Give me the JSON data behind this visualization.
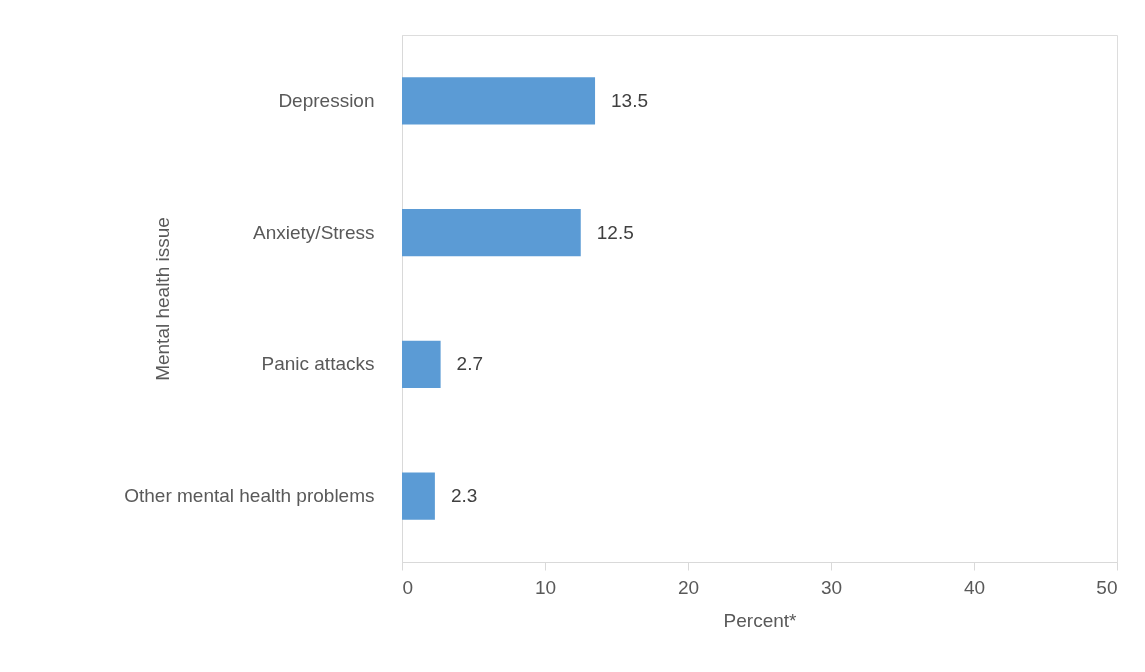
{
  "chart_data": {
    "type": "bar",
    "orientation": "horizontal",
    "xlabel": "Percent*",
    "ylabel": "Mental health issue",
    "categories": [
      "Depression",
      "Anxiety/Stress",
      "Panic attacks",
      "Other mental health problems"
    ],
    "values": [
      13.5,
      12.5,
      2.7,
      2.3
    ],
    "color": "#5b9bd5",
    "xlim": [
      0,
      50
    ],
    "xticks": [
      0,
      10,
      20,
      30,
      40,
      50
    ],
    "grid": false,
    "data_labels": true
  }
}
